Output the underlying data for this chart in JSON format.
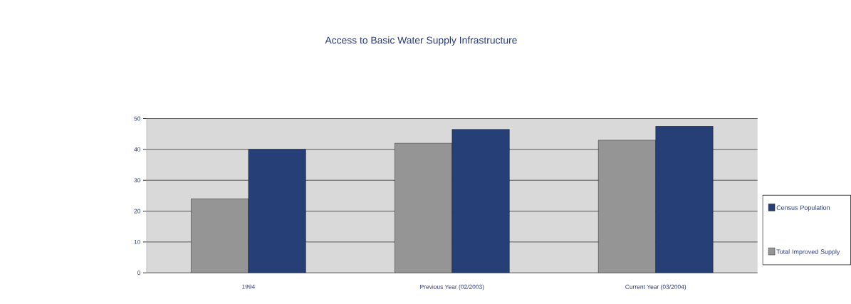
{
  "chart_data": {
    "type": "bar",
    "title": "Access to Basic Water Supply Infrastructure",
    "categories": [
      "1994",
      "Previous Year (02/2003)",
      "Current Year (03/2004)"
    ],
    "series": [
      {
        "name": "Total Improved Supply",
        "color": "#959595",
        "values": [
          24,
          42,
          43
        ]
      },
      {
        "name": "Census Population",
        "color": "#263f76",
        "values": [
          40,
          46.5,
          47.5
        ]
      }
    ],
    "ylim": [
      0,
      50
    ],
    "yticks": [
      0,
      10,
      20,
      30,
      40,
      50
    ],
    "grid": "y",
    "legend": "right"
  }
}
